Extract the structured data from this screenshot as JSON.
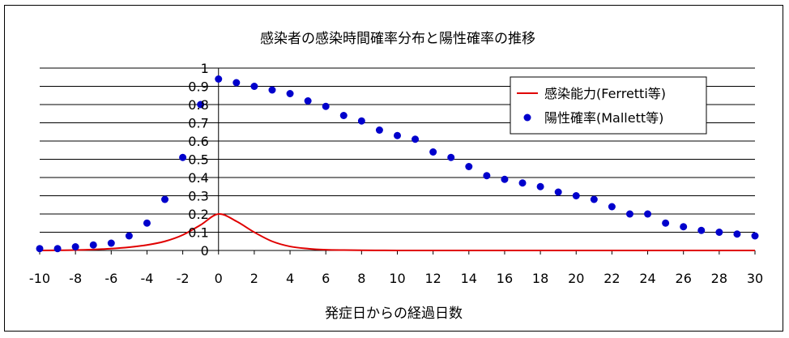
{
  "chart_data": {
    "type": "line",
    "title": "感染者の感染時間確率分布と陽性確率の推移",
    "xlabel": "発症日からの経過日数",
    "ylabel": "",
    "xlim": [
      -10,
      30
    ],
    "ylim": [
      0,
      1
    ],
    "x_ticks": [
      "-10",
      "-8",
      "-6",
      "-4",
      "-2",
      "0",
      "2",
      "4",
      "6",
      "8",
      "10",
      "12",
      "14",
      "16",
      "18",
      "20",
      "22",
      "24",
      "26",
      "28",
      "30"
    ],
    "y_ticks": [
      "0",
      "0.1",
      "0.2",
      "0.3",
      "0.4",
      "0.5",
      "0.6",
      "0.7",
      "0.8",
      "0.9",
      "1"
    ],
    "grid": "horizontal",
    "legend_position": "top-right",
    "series": [
      {
        "name": "感染能力(Ferretti等)",
        "kind": "line",
        "color": "#e00000",
        "x": [
          -10,
          -9,
          -8,
          -7,
          -6,
          -5,
          -4,
          -3,
          -2,
          -1,
          0,
          1,
          2,
          3,
          4,
          5,
          6,
          7,
          8,
          9,
          10,
          12,
          14,
          16,
          18,
          20,
          22,
          24,
          26,
          28,
          30
        ],
        "values": [
          0.0,
          0.001,
          0.002,
          0.005,
          0.01,
          0.018,
          0.03,
          0.05,
          0.085,
          0.14,
          0.2,
          0.16,
          0.1,
          0.05,
          0.022,
          0.01,
          0.004,
          0.002,
          0.001,
          0.0005,
          0.0,
          0.0,
          0.0,
          0.0,
          0.0,
          0.0,
          0.0,
          0.0,
          0.0,
          0.0,
          0.0
        ]
      },
      {
        "name": "陽性確率(Mallett等)",
        "kind": "scatter",
        "color": "#0000cc",
        "x": [
          -10,
          -9,
          -8,
          -7,
          -6,
          -5,
          -4,
          -3,
          -2,
          -1,
          0,
          1,
          2,
          3,
          4,
          5,
          6,
          7,
          8,
          9,
          10,
          11,
          12,
          13,
          14,
          15,
          16,
          17,
          18,
          19,
          20,
          21,
          22,
          23,
          24,
          25,
          26,
          27,
          28,
          29,
          30
        ],
        "values": [
          0.01,
          0.01,
          0.02,
          0.03,
          0.04,
          0.08,
          0.15,
          0.28,
          0.51,
          0.8,
          0.94,
          0.92,
          0.9,
          0.88,
          0.86,
          0.82,
          0.79,
          0.74,
          0.71,
          0.66,
          0.63,
          0.61,
          0.54,
          0.51,
          0.46,
          0.41,
          0.39,
          0.37,
          0.35,
          0.32,
          0.3,
          0.28,
          0.24,
          0.2,
          0.2,
          0.15,
          0.13,
          0.11,
          0.1,
          0.09,
          0.08
        ]
      }
    ]
  }
}
